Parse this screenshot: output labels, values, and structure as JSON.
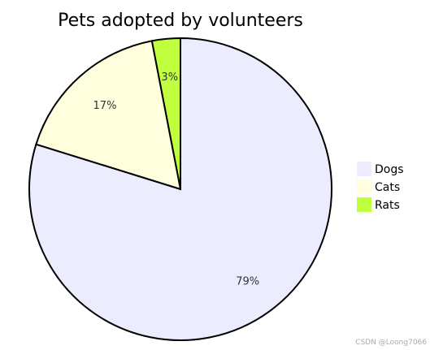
{
  "chart_data": {
    "type": "pie",
    "title": "Pets adopted by volunteers",
    "slices": [
      {
        "label": "Dogs",
        "value": 79,
        "display": "79%",
        "color": "#ececff"
      },
      {
        "label": "Cats",
        "value": 17,
        "display": "17%",
        "color": "#ffffde"
      },
      {
        "label": "Rats",
        "value": 3,
        "display": "3%",
        "color": "#c0ff3e"
      }
    ],
    "legend_position": "right"
  },
  "watermark": "CSDN @Loong7066"
}
